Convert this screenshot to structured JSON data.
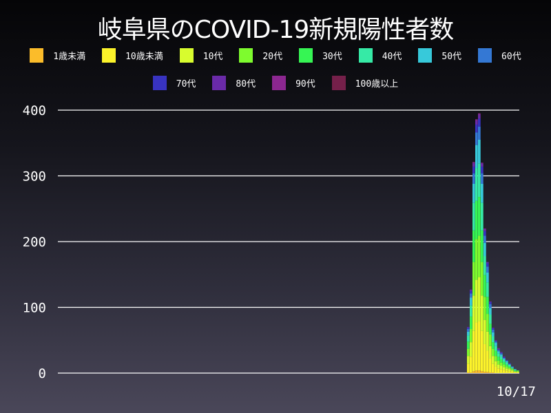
{
  "chart_data": {
    "type": "bar",
    "stacked": true,
    "title": "岐阜県のCOVID-19新規陽性者数",
    "x_last_label": "10/17",
    "ylim": [
      0,
      400
    ],
    "yticks": [
      "0",
      "100",
      "200",
      "300",
      "400"
    ],
    "grid": true,
    "legend_placement": "top",
    "series": [
      {
        "name": "1歳未満",
        "color": "#fbbc2a",
        "values": [
          1,
          1,
          3,
          4,
          4,
          3,
          2,
          2,
          1,
          1,
          0,
          0,
          0,
          0,
          0,
          0,
          0,
          0,
          0
        ]
      },
      {
        "name": "10歳未満",
        "color": "#fcf32a",
        "values": [
          13,
          24,
          61,
          73,
          75,
          61,
          42,
          32,
          21,
          13,
          10,
          7,
          6,
          5,
          4,
          3,
          2,
          1,
          1
        ]
      },
      {
        "name": "10代",
        "color": "#d8fc2e",
        "values": [
          12,
          22,
          54,
          65,
          67,
          54,
          37,
          29,
          19,
          12,
          8,
          6,
          5,
          4,
          3,
          3,
          2,
          1,
          1
        ]
      },
      {
        "name": "20代",
        "color": "#7efb2e",
        "values": [
          11,
          20,
          51,
          62,
          63,
          51,
          35,
          27,
          18,
          11,
          8,
          6,
          5,
          4,
          3,
          2,
          2,
          1,
          1
        ]
      },
      {
        "name": "30代",
        "color": "#36f554",
        "values": [
          11,
          19,
          48,
          58,
          59,
          48,
          33,
          26,
          16,
          10,
          8,
          6,
          5,
          4,
          3,
          2,
          1,
          1,
          1
        ]
      },
      {
        "name": "40代",
        "color": "#36eaa6",
        "values": [
          9,
          17,
          42,
          50,
          51,
          42,
          29,
          22,
          14,
          9,
          7,
          5,
          4,
          3,
          3,
          2,
          1,
          1,
          0
        ]
      },
      {
        "name": "50代",
        "color": "#37c9da",
        "values": [
          6,
          12,
          29,
          35,
          36,
          29,
          20,
          15,
          10,
          6,
          5,
          3,
          3,
          2,
          2,
          1,
          1,
          1,
          0
        ]
      },
      {
        "name": "60代",
        "color": "#3478d4",
        "values": [
          4,
          6,
          16,
          19,
          20,
          16,
          11,
          9,
          6,
          4,
          2,
          2,
          2,
          1,
          1,
          1,
          1,
          0,
          0
        ]
      },
      {
        "name": "70代",
        "color": "#3833c0",
        "values": [
          2,
          4,
          10,
          12,
          12,
          10,
          7,
          5,
          3,
          2,
          1,
          1,
          1,
          1,
          1,
          1,
          0,
          0,
          0
        ]
      },
      {
        "name": "80代",
        "color": "#6a2aa8",
        "values": [
          1,
          2,
          5,
          6,
          6,
          5,
          3,
          2,
          1,
          1,
          1,
          1,
          1,
          1,
          0,
          0,
          0,
          0,
          0
        ]
      },
      {
        "name": "90代",
        "color": "#8c2790",
        "values": [
          0,
          0,
          2,
          2,
          2,
          1,
          1,
          0,
          0,
          0,
          0,
          1,
          0,
          0,
          0,
          0,
          0,
          0,
          0
        ]
      },
      {
        "name": "100歳以上",
        "color": "#75204a",
        "values": [
          0,
          0,
          0,
          0,
          0,
          0,
          0,
          0,
          0,
          0,
          0,
          0,
          0,
          0,
          0,
          0,
          0,
          0,
          0
        ]
      }
    ]
  }
}
